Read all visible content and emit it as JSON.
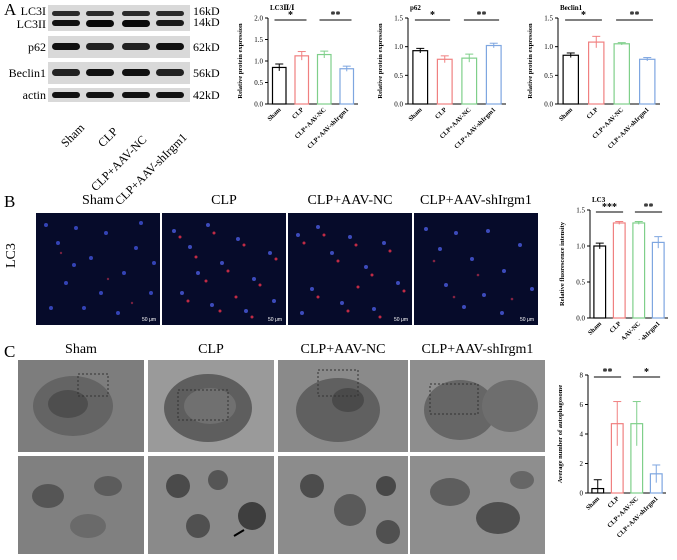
{
  "panel_labels": {
    "a": "A",
    "b": "B",
    "c": "C"
  },
  "blot": {
    "rows": [
      {
        "label": "LC3I",
        "kd": "16kD"
      },
      {
        "label": "LC3II",
        "kd": "14kD"
      },
      {
        "label": "p62",
        "kd": "62kD"
      },
      {
        "label": "Beclin1",
        "kd": "56kD"
      },
      {
        "label": "actin",
        "kd": "42kD"
      }
    ],
    "lanes": [
      "Sham",
      "CLP",
      "CLP+AAV-NC",
      "CLP+AAV-shIrgm1"
    ]
  },
  "groups": [
    "Sham",
    "CLP",
    "CLP+AAV-NC",
    "CLP+AAV-shIrgm1"
  ],
  "row_label_b": "LC3",
  "scale_bar": "50 μm",
  "colors": {
    "sham": "#000000",
    "clp": "#f08080",
    "nc": "#7fcf8a",
    "sh": "#7ea6e0"
  },
  "chart_data": [
    {
      "type": "bar",
      "title": "LC3Ⅱ/Ⅰ",
      "ylabel": "Relative protein expression",
      "categories": [
        "Sham",
        "CLP",
        "CLP+AAV-NC",
        "CLP+AAV-shIrgm1"
      ],
      "values": [
        0.85,
        1.12,
        1.15,
        0.82
      ],
      "errors": [
        0.08,
        0.1,
        0.08,
        0.06
      ],
      "ylim": [
        0,
        2.0
      ],
      "yticks": [
        "0.0",
        "0.5",
        "1.0",
        "1.5",
        "2.0"
      ],
      "sig": [
        {
          "from": 0,
          "to": 1,
          "label": "*"
        },
        {
          "from": 2,
          "to": 3,
          "label": "**"
        }
      ]
    },
    {
      "type": "bar",
      "title": "p62",
      "ylabel": "Relative protein expression",
      "categories": [
        "Sham",
        "CLP",
        "CLP+AAV-NC",
        "CLP+AAV-shIrgm1"
      ],
      "values": [
        0.93,
        0.78,
        0.8,
        1.02
      ],
      "errors": [
        0.04,
        0.06,
        0.07,
        0.04
      ],
      "ylim": [
        0,
        1.5
      ],
      "yticks": [
        "0.0",
        "0.5",
        "1.0",
        "1.5"
      ],
      "sig": [
        {
          "from": 0,
          "to": 1,
          "label": "*"
        },
        {
          "from": 2,
          "to": 3,
          "label": "**"
        }
      ]
    },
    {
      "type": "bar",
      "title": "Beclin1",
      "ylabel": "Relative protein expression",
      "categories": [
        "Sham",
        "CLP",
        "CLP+AAV-NC",
        "CLP+AAV-shIrgm1"
      ],
      "values": [
        0.85,
        1.08,
        1.05,
        0.78
      ],
      "errors": [
        0.04,
        0.1,
        0.02,
        0.03
      ],
      "ylim": [
        0,
        1.5
      ],
      "yticks": [
        "0.0",
        "0.5",
        "1.0",
        "1.5"
      ],
      "sig": [
        {
          "from": 0,
          "to": 1,
          "label": "*"
        },
        {
          "from": 2,
          "to": 3,
          "label": "**"
        }
      ]
    },
    {
      "type": "bar",
      "title": "LC3",
      "ylabel": "Relative fluorescence intensity",
      "categories": [
        "Sham",
        "CLP",
        "CLP+AAV-NC",
        "CLP+AAV-shIrgm1"
      ],
      "values": [
        1.0,
        1.32,
        1.32,
        1.05
      ],
      "errors": [
        0.04,
        0.02,
        0.02,
        0.08
      ],
      "ylim": [
        0,
        1.5
      ],
      "yticks": [
        "0.0",
        "0.5",
        "1.0",
        "1.5"
      ],
      "sig": [
        {
          "from": 0,
          "to": 1,
          "label": "***"
        },
        {
          "from": 2,
          "to": 3,
          "label": "**"
        }
      ]
    },
    {
      "type": "bar",
      "title": "",
      "ylabel": "Average number of autophagosome",
      "categories": [
        "Sham",
        "CLP",
        "CLP+AAV-NC",
        "CLP+AAV-shIrgm1"
      ],
      "values": [
        0.3,
        4.7,
        4.7,
        1.3
      ],
      "errors": [
        0.6,
        1.5,
        1.5,
        0.6
      ],
      "ylim": [
        0,
        8
      ],
      "yticks": [
        "0",
        "2",
        "4",
        "6",
        "8"
      ],
      "sig": [
        {
          "from": 0,
          "to": 1,
          "label": "**"
        },
        {
          "from": 2,
          "to": 3,
          "label": "*"
        }
      ]
    }
  ]
}
